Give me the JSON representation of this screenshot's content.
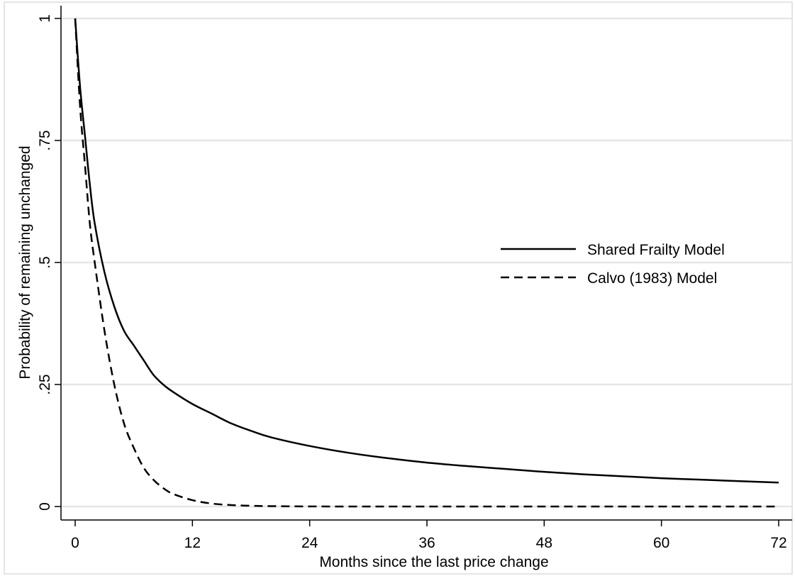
{
  "chart_data": {
    "type": "line",
    "title": "",
    "xlabel": "Months since the last price change",
    "ylabel": "Probability of remaining unchanged",
    "xlim": [
      0,
      72
    ],
    "ylim": [
      0,
      1
    ],
    "x_ticks": [
      0,
      12,
      24,
      36,
      48,
      60,
      72
    ],
    "x_tick_labels": [
      "0",
      "12",
      "24",
      "36",
      "48",
      "60",
      "72"
    ],
    "y_ticks": [
      0,
      0.25,
      0.5,
      0.75,
      1
    ],
    "y_tick_labels": [
      "0",
      ".25",
      ".5",
      ".75",
      "1"
    ],
    "grid": true,
    "legend_position": "right",
    "series": [
      {
        "name": "Shared Frailty Model",
        "style": "solid",
        "x": [
          0,
          0.5,
          1,
          1.5,
          2,
          3,
          4,
          5,
          6,
          7,
          8,
          9,
          10,
          12,
          14,
          16,
          18,
          20,
          24,
          28,
          32,
          36,
          40,
          44,
          48,
          52,
          56,
          60,
          64,
          68,
          72
        ],
        "y": [
          1.0,
          0.86,
          0.76,
          0.66,
          0.58,
          0.48,
          0.41,
          0.36,
          0.33,
          0.3,
          0.27,
          0.25,
          0.235,
          0.21,
          0.19,
          0.17,
          0.155,
          0.142,
          0.124,
          0.11,
          0.099,
          0.09,
          0.083,
          0.077,
          0.071,
          0.066,
          0.062,
          0.058,
          0.055,
          0.052,
          0.049
        ]
      },
      {
        "name": "Calvo (1983) Model",
        "style": "dashed",
        "x": [
          0,
          0.5,
          1,
          1.5,
          2,
          3,
          4,
          5,
          6,
          7,
          8,
          9,
          10,
          12,
          14,
          16,
          18,
          20,
          24,
          30,
          36,
          48,
          60,
          72
        ],
        "y": [
          1.0,
          0.82,
          0.7,
          0.58,
          0.5,
          0.36,
          0.25,
          0.17,
          0.12,
          0.08,
          0.055,
          0.038,
          0.026,
          0.013,
          0.006,
          0.003,
          0.0015,
          0.0008,
          0.0002,
          0.0,
          0.0,
          0.0,
          0.0,
          0.0
        ]
      }
    ]
  }
}
